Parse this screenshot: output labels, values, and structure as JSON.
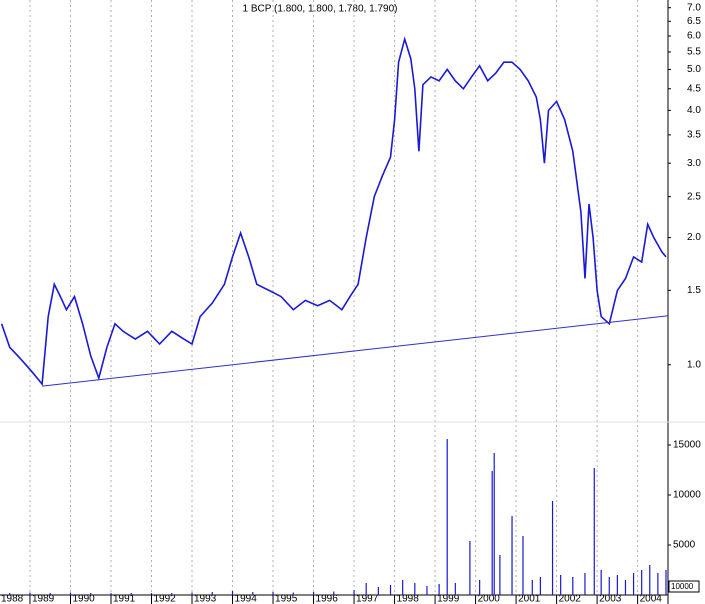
{
  "chart_data": [
    {
      "type": "line",
      "title": "1 BCP (1.800, 1.800, 1.780, 1.790)",
      "log_scale": true,
      "color": "#1a1ad6",
      "xlim": [
        1988.26,
        2004.75
      ],
      "ylim": [
        0.74,
        7.3
      ],
      "yticks": [
        {
          "value": 1,
          "label": "1.0"
        },
        1.5,
        {
          "value": 2,
          "label": "2.0"
        },
        2.5,
        {
          "value": 3,
          "label": "3.0"
        },
        3.5,
        {
          "value": 4,
          "label": "4.0"
        },
        4.5,
        {
          "value": 5,
          "label": "5.0"
        },
        5.5,
        {
          "value": 6,
          "label": "6.0"
        },
        6.5,
        {
          "value": 7,
          "label": "7.0"
        }
      ],
      "x": [
        1988.3,
        1988.5,
        1988.7,
        1988.9,
        1989.1,
        1989.3,
        1989.45,
        1989.6,
        1989.75,
        1989.9,
        1990.1,
        1990.3,
        1990.5,
        1990.7,
        1990.9,
        1991.1,
        1991.3,
        1991.6,
        1991.9,
        1992.2,
        1992.5,
        1992.8,
        1993.0,
        1993.2,
        1993.5,
        1993.8,
        1994.0,
        1994.2,
        1994.4,
        1994.6,
        1994.9,
        1995.2,
        1995.5,
        1995.8,
        1996.1,
        1996.4,
        1996.7,
        1996.9,
        1997.1,
        1997.3,
        1997.5,
        1997.7,
        1997.9,
        1998.0,
        1998.1,
        1998.25,
        1998.4,
        1998.5,
        1998.6,
        1998.7,
        1998.9,
        1999.1,
        1999.3,
        1999.5,
        1999.7,
        1999.9,
        2000.1,
        2000.3,
        2000.5,
        2000.7,
        2000.9,
        2001.1,
        2001.3,
        2001.5,
        2001.6,
        2001.7,
        2001.8,
        2002.0,
        2002.2,
        2002.4,
        2002.6,
        2002.7,
        2002.8,
        2002.9,
        2003.0,
        2003.1,
        2003.3,
        2003.5,
        2003.7,
        2003.9,
        2004.1,
        2004.25,
        2004.4,
        2004.6,
        2004.7
      ],
      "values": [
        1.25,
        1.1,
        1.05,
        1.0,
        0.95,
        0.9,
        1.3,
        1.55,
        1.45,
        1.35,
        1.45,
        1.25,
        1.05,
        0.93,
        1.1,
        1.25,
        1.2,
        1.15,
        1.2,
        1.12,
        1.2,
        1.15,
        1.12,
        1.3,
        1.4,
        1.55,
        1.8,
        2.05,
        1.8,
        1.55,
        1.5,
        1.45,
        1.35,
        1.42,
        1.38,
        1.42,
        1.35,
        1.45,
        1.55,
        2.0,
        2.5,
        2.8,
        3.1,
        3.8,
        5.2,
        5.9,
        5.3,
        4.5,
        3.2,
        4.6,
        4.8,
        4.7,
        5.0,
        4.7,
        4.5,
        4.8,
        5.1,
        4.7,
        4.9,
        5.2,
        5.2,
        5.0,
        4.7,
        4.3,
        3.8,
        3.0,
        4.0,
        4.2,
        3.8,
        3.2,
        2.3,
        1.6,
        2.4,
        2.0,
        1.5,
        1.3,
        1.25,
        1.5,
        1.6,
        1.8,
        1.75,
        2.15,
        2.0,
        1.85,
        1.8
      ],
      "trendline": {
        "color": "#3030c8",
        "x": [
          1989.3,
          2004.75
        ],
        "values": [
          0.89,
          1.306
        ]
      }
    },
    {
      "type": "bar",
      "color": "#1a1ad6",
      "unit_label": "10000",
      "xlim": [
        1988.26,
        2004.75
      ],
      "ylim": [
        0,
        17000
      ],
      "yticks": [
        5000,
        10000,
        15000
      ],
      "xticks": [
        1988,
        1989,
        1990,
        1991,
        1992,
        1993,
        1994,
        1995,
        1996,
        1997,
        1998,
        1999,
        2000,
        2001,
        2002,
        2003,
        2004
      ],
      "x": [
        1988.5,
        1989,
        1989.5,
        1990,
        1990.5,
        1991,
        1991.5,
        1992,
        1992.5,
        1993,
        1993.5,
        1994,
        1994.5,
        1995,
        1995.5,
        1996,
        1996.5,
        1997,
        1997.3,
        1997.6,
        1997.9,
        1998.2,
        1998.5,
        1998.8,
        1999.1,
        1999.3,
        1999.5,
        1999.86,
        2000.1,
        2000.41,
        2000.46,
        2000.6,
        2000.9,
        2001.17,
        2001.4,
        2001.6,
        2001.9,
        2002.1,
        2002.4,
        2002.7,
        2002.93,
        2003.1,
        2003.3,
        2003.5,
        2003.7,
        2003.9,
        2004.1,
        2004.3,
        2004.5,
        2004.7
      ],
      "values": [
        200,
        250,
        200,
        250,
        200,
        200,
        200,
        200,
        200,
        250,
        300,
        400,
        300,
        300,
        250,
        300,
        350,
        500,
        1200,
        800,
        1000,
        1500,
        1200,
        900,
        1100,
        15600,
        1200,
        5400,
        1500,
        12400,
        14200,
        4000,
        7900,
        5900,
        1500,
        1800,
        9400,
        2000,
        1800,
        2200,
        12700,
        2500,
        1800,
        2000,
        1500,
        2200,
        2500,
        3000,
        2200,
        2500
      ]
    }
  ]
}
